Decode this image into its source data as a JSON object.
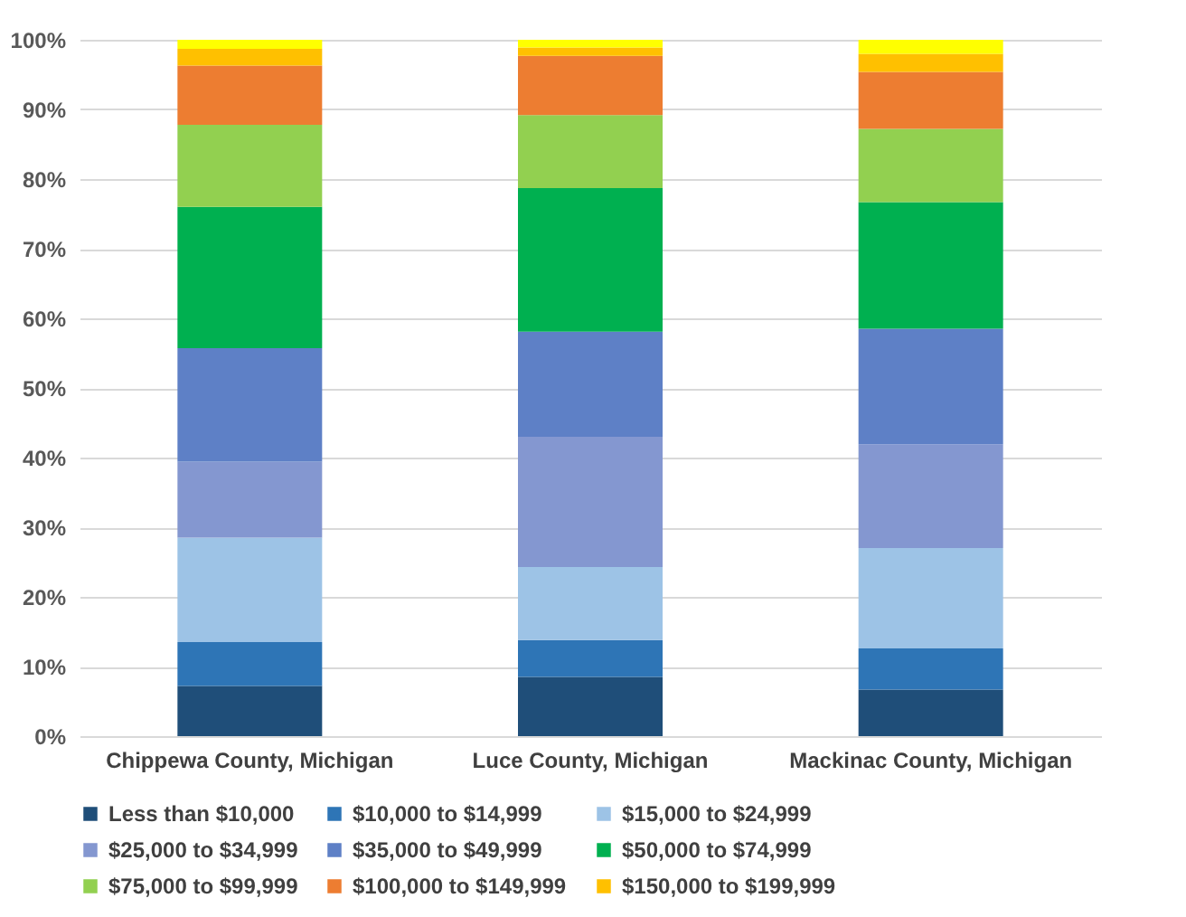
{
  "chart_data": {
    "type": "bar",
    "stacked": true,
    "categories": [
      "Chippewa County, Michigan",
      "Luce County, Michigan",
      "Mackinac County, Michigan"
    ],
    "series": [
      {
        "name": "Less than $10,000",
        "color": "#1f4e79",
        "values": [
          7.2,
          8.5,
          6.7
        ]
      },
      {
        "name": "$10,000 to $14,999",
        "color": "#2e75b6",
        "values": [
          6.3,
          5.3,
          5.9
        ]
      },
      {
        "name": "$15,000 to $24,999",
        "color": "#9dc3e6",
        "values": [
          15.0,
          10.5,
          14.4
        ]
      },
      {
        "name": "$25,000 to $34,999",
        "color": "#8497d0",
        "values": [
          10.9,
          18.7,
          14.9
        ]
      },
      {
        "name": "$35,000 to $49,999",
        "color": "#5e80c6",
        "values": [
          16.3,
          15.1,
          16.6
        ]
      },
      {
        "name": "$50,000 to $74,999",
        "color": "#00b050",
        "values": [
          20.3,
          20.6,
          18.2
        ]
      },
      {
        "name": "$75,000 to $99,999",
        "color": "#92d050",
        "values": [
          11.8,
          10.5,
          10.5
        ]
      },
      {
        "name": "$100,000 to $149,999",
        "color": "#ed7d31",
        "values": [
          8.5,
          8.5,
          8.2
        ]
      },
      {
        "name": "$150,000 to $199,999",
        "color": "#ffc000",
        "values": [
          2.4,
          1.2,
          2.6
        ]
      },
      {
        "color": "#ffff00",
        "values": [
          1.3,
          1.1,
          2.0
        ]
      }
    ],
    "ylim": [
      0,
      100
    ],
    "yticks": [
      {
        "value": 0,
        "label": "0%"
      },
      {
        "value": 10,
        "label": "10%"
      },
      {
        "value": 20,
        "label": "20%"
      },
      {
        "value": 30,
        "label": "30%"
      },
      {
        "value": 40,
        "label": "40%"
      },
      {
        "value": 50,
        "label": "50%"
      },
      {
        "value": 60,
        "label": "60%"
      },
      {
        "value": 70,
        "label": "70%"
      },
      {
        "value": 80,
        "label": "80%"
      },
      {
        "value": 90,
        "label": "90%"
      },
      {
        "value": 100,
        "label": "100%"
      }
    ],
    "grid": "y",
    "legend": "bottom"
  }
}
